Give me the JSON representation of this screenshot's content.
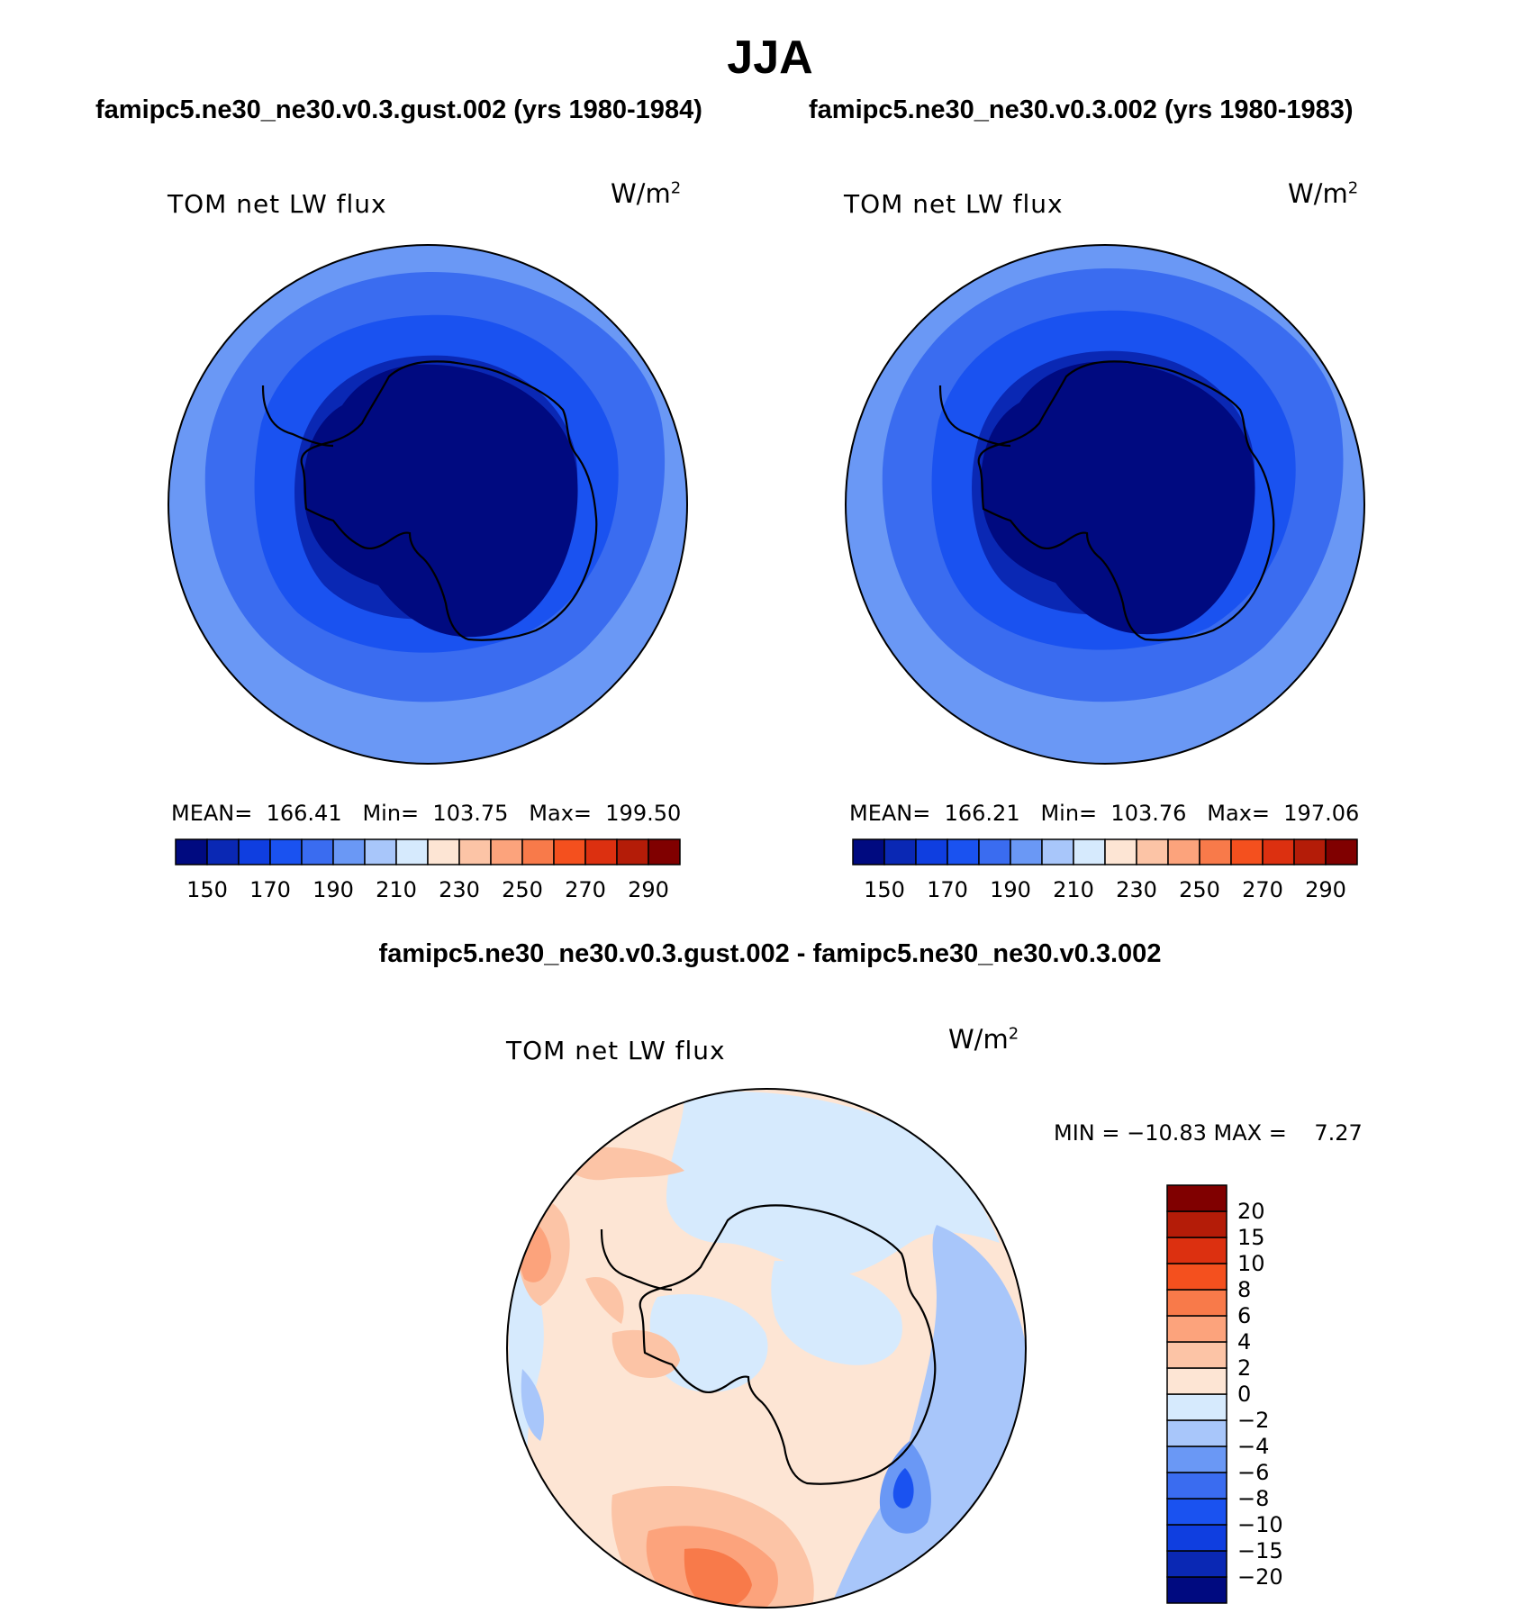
{
  "figure": {
    "season": "JJA",
    "panel1_case": "famipc5.ne30_ne30.v0.3.gust.002 (yrs 1980-1984)",
    "panel2_case": "famipc5.ne30_ne30.v0.3.002 (yrs 1980-1983)",
    "diff_title": "famipc5.ne30_ne30.v0.3.gust.002 - famipc5.ne30_ne30.v0.3.002",
    "variable": "TOM net LW flux",
    "units_base": "W/m",
    "units_exp": "2",
    "diff_stats": "MIN = −10.83 MAX =    7.27"
  },
  "chart_data": [
    {
      "type": "heatmap",
      "projection": "south-polar stereographic",
      "title": "TOM net LW flux",
      "units": "W/m2",
      "stats": "MEAN=  166.41   Min=  103.75   Max=  199.50",
      "mean": 166.41,
      "min": 103.75,
      "max": 199.5,
      "colorbar_levels": [
        150,
        160,
        170,
        180,
        190,
        200,
        210,
        220,
        230,
        240,
        250,
        260,
        270,
        280,
        290
      ],
      "colorbar_tick_labels": [
        "150",
        "170",
        "190",
        "210",
        "230",
        "250",
        "270",
        "290"
      ],
      "colorbar_orientation": "horizontal"
    },
    {
      "type": "heatmap",
      "projection": "south-polar stereographic",
      "title": "TOM net LW flux",
      "units": "W/m2",
      "stats": "MEAN=  166.21   Min=  103.76   Max=  197.06",
      "mean": 166.21,
      "min": 103.76,
      "max": 197.06,
      "colorbar_levels": [
        150,
        160,
        170,
        180,
        190,
        200,
        210,
        220,
        230,
        240,
        250,
        260,
        270,
        280,
        290
      ],
      "colorbar_tick_labels": [
        "150",
        "170",
        "190",
        "210",
        "230",
        "250",
        "270",
        "290"
      ],
      "colorbar_orientation": "horizontal"
    },
    {
      "type": "heatmap",
      "projection": "south-polar stereographic",
      "title": "TOM net LW flux",
      "units": "W/m2",
      "stats": "MIN = −10.83 MAX =    7.27",
      "min": -10.83,
      "max": 7.27,
      "colorbar_levels": [
        -20,
        -15,
        -10,
        -8,
        -6,
        -4,
        -2,
        0,
        2,
        4,
        6,
        8,
        10,
        15,
        20
      ],
      "colorbar_tick_labels": [
        "−20",
        "−15",
        "−10",
        "−8",
        "−6",
        "−4",
        "−2",
        "0",
        "2",
        "4",
        "6",
        "8",
        "10",
        "15",
        "20"
      ],
      "colorbar_orientation": "vertical"
    }
  ],
  "colors": {
    "abs_palette": [
      "#000a80",
      "#0a28b4",
      "#0f3ee0",
      "#1a52f0",
      "#3a6cf0",
      "#6a98f5",
      "#a8c6fa",
      "#d6eafd",
      "#fde5d4",
      "#fcc4a6",
      "#fca37c",
      "#f87a4a",
      "#f4501e",
      "#dc3010",
      "#b41c08",
      "#800000"
    ],
    "diff_palette": [
      "#000a80",
      "#0a28b4",
      "#0f3ee0",
      "#1a52f0",
      "#3a6cf0",
      "#6a98f5",
      "#a8c6fa",
      "#d6eafd",
      "#fde5d4",
      "#fcc4a6",
      "#fca37c",
      "#f87a4a",
      "#f4501e",
      "#dc3010",
      "#b41c08",
      "#800000"
    ],
    "coast": "#000000"
  }
}
